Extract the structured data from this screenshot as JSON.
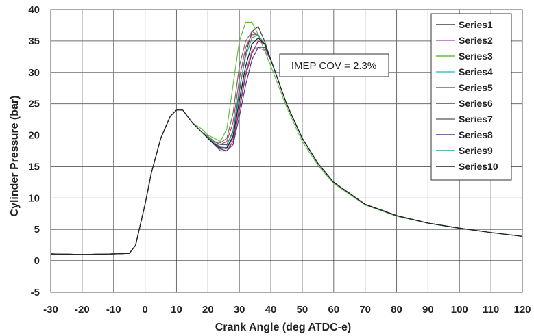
{
  "chart_data": {
    "type": "line",
    "title": "",
    "xlabel": "Crank Angle (deg ATDC-e)",
    "ylabel": "Cylinder Pressure (bar)",
    "xlim": [
      -30,
      120
    ],
    "ylim": [
      -5,
      40
    ],
    "x_ticks": [
      -30,
      -20,
      -10,
      0,
      10,
      20,
      30,
      40,
      50,
      60,
      70,
      80,
      90,
      100,
      110,
      120
    ],
    "y_ticks": [
      -5,
      0,
      5,
      10,
      15,
      20,
      25,
      30,
      35,
      40
    ],
    "grid": true,
    "legend_position": "top-right",
    "annotation": "IMEP COV = 2.3%",
    "x": [
      -30,
      -20,
      -10,
      -5,
      -3,
      0,
      2,
      5,
      8,
      10,
      12,
      15,
      18,
      20,
      22,
      24,
      26,
      28,
      30,
      32,
      34,
      36,
      38,
      40,
      45,
      50,
      55,
      60,
      70,
      80,
      90,
      100,
      110,
      120
    ],
    "series": [
      {
        "name": "Series1",
        "color": "#404040",
        "values": [
          1.1,
          1.0,
          1.1,
          1.2,
          2.5,
          9.0,
          14.0,
          19.5,
          23.0,
          24.0,
          24.0,
          22.0,
          20.5,
          19.8,
          19.0,
          18.5,
          18.5,
          20.5,
          27.0,
          33.0,
          36.5,
          37.3,
          35.0,
          32.0,
          25.0,
          19.5,
          15.5,
          12.5,
          9.0,
          7.2,
          6.0,
          5.2,
          4.5,
          3.9
        ]
      },
      {
        "name": "Series2",
        "color": "#b060c0",
        "values": [
          1.1,
          1.0,
          1.1,
          1.2,
          2.5,
          9.0,
          14.0,
          19.5,
          23.0,
          24.0,
          24.0,
          22.0,
          20.5,
          19.5,
          18.8,
          18.0,
          17.8,
          19.5,
          24.5,
          30.0,
          33.5,
          34.0,
          33.5,
          32.0,
          25.0,
          19.5,
          15.5,
          12.5,
          9.0,
          7.2,
          6.0,
          5.2,
          4.5,
          3.9
        ]
      },
      {
        "name": "Series3",
        "color": "#60c040",
        "values": [
          1.1,
          1.0,
          1.1,
          1.2,
          2.5,
          9.0,
          14.0,
          19.5,
          23.0,
          24.0,
          24.0,
          22.0,
          21.0,
          20.0,
          19.5,
          19.0,
          21.0,
          28.0,
          35.0,
          38.0,
          38.0,
          36.0,
          33.5,
          31.0,
          24.5,
          19.0,
          15.2,
          12.3,
          8.9,
          7.1,
          6.0,
          5.2,
          4.5,
          3.9
        ]
      },
      {
        "name": "Series4",
        "color": "#40c0d0",
        "values": [
          1.1,
          1.0,
          1.1,
          1.2,
          2.5,
          9.0,
          14.0,
          19.5,
          23.0,
          24.0,
          24.0,
          22.0,
          20.5,
          19.5,
          18.5,
          17.8,
          18.0,
          20.0,
          26.0,
          31.0,
          34.5,
          35.5,
          34.5,
          32.0,
          25.0,
          19.5,
          15.5,
          12.5,
          9.0,
          7.2,
          6.0,
          5.2,
          4.5,
          3.9
        ]
      },
      {
        "name": "Series5",
        "color": "#c04060",
        "values": [
          1.1,
          1.0,
          1.1,
          1.2,
          2.5,
          9.0,
          14.0,
          19.5,
          23.0,
          24.0,
          24.0,
          22.0,
          20.5,
          19.8,
          19.0,
          18.5,
          19.0,
          22.0,
          29.0,
          34.0,
          36.0,
          36.0,
          34.5,
          32.0,
          25.0,
          19.5,
          15.5,
          12.5,
          9.0,
          7.2,
          6.0,
          5.2,
          4.5,
          3.9
        ]
      },
      {
        "name": "Series6",
        "color": "#a02050",
        "values": [
          1.1,
          1.0,
          1.1,
          1.2,
          2.5,
          9.0,
          14.0,
          19.5,
          23.0,
          24.0,
          24.0,
          22.0,
          20.5,
          19.5,
          18.5,
          17.5,
          17.5,
          19.0,
          24.0,
          29.5,
          33.0,
          35.0,
          34.5,
          32.0,
          25.0,
          19.5,
          15.5,
          12.5,
          9.0,
          7.2,
          6.0,
          5.2,
          4.5,
          3.9
        ]
      },
      {
        "name": "Series7",
        "color": "#707070",
        "values": [
          1.1,
          1.0,
          1.1,
          1.2,
          2.5,
          9.0,
          14.0,
          19.5,
          23.0,
          24.0,
          24.0,
          22.0,
          20.5,
          19.8,
          19.0,
          18.8,
          19.5,
          23.5,
          31.0,
          35.0,
          36.5,
          36.0,
          34.5,
          32.0,
          25.0,
          19.5,
          15.5,
          12.5,
          9.0,
          7.2,
          6.0,
          5.2,
          4.5,
          3.9
        ]
      },
      {
        "name": "Series8",
        "color": "#404080",
        "values": [
          1.1,
          1.0,
          1.1,
          1.2,
          2.5,
          9.0,
          14.0,
          19.5,
          23.0,
          24.0,
          24.0,
          22.0,
          20.5,
          19.5,
          18.5,
          17.8,
          17.5,
          18.5,
          23.0,
          28.0,
          32.0,
          34.0,
          34.0,
          32.0,
          25.0,
          19.5,
          15.5,
          12.5,
          9.0,
          7.2,
          6.0,
          5.2,
          4.5,
          3.9
        ]
      },
      {
        "name": "Series9",
        "color": "#30a090",
        "values": [
          1.1,
          1.0,
          1.1,
          1.2,
          2.5,
          9.0,
          14.0,
          19.5,
          23.0,
          24.0,
          24.0,
          22.0,
          20.5,
          19.6,
          18.8,
          18.2,
          18.3,
          20.8,
          27.5,
          32.5,
          35.5,
          36.0,
          34.5,
          32.0,
          25.0,
          19.5,
          15.5,
          12.5,
          9.0,
          7.2,
          6.0,
          5.2,
          4.5,
          3.9
        ]
      },
      {
        "name": "Series10",
        "color": "#222222",
        "values": [
          1.1,
          1.0,
          1.1,
          1.2,
          2.5,
          9.0,
          14.0,
          19.5,
          23.0,
          24.0,
          24.0,
          22.0,
          20.5,
          19.5,
          18.6,
          18.0,
          18.0,
          19.8,
          25.5,
          31.0,
          34.5,
          35.5,
          34.5,
          32.0,
          25.0,
          19.5,
          15.5,
          12.5,
          9.0,
          7.2,
          6.0,
          5.2,
          4.5,
          3.9
        ]
      }
    ]
  }
}
